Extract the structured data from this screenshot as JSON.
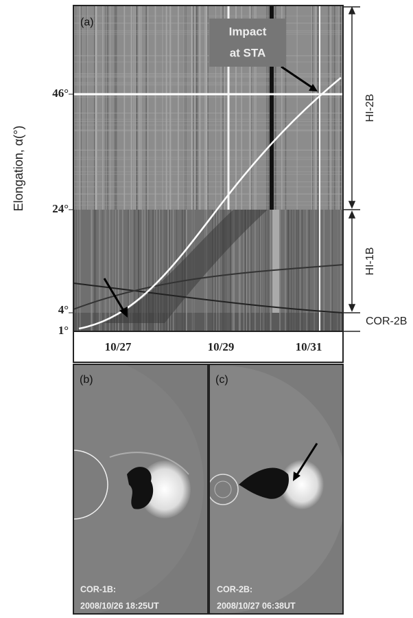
{
  "figure": {
    "panel_a": {
      "label": "(a)",
      "y_axis_label": "Elongation, α(°)",
      "y_ticks": [
        "46°",
        "24°",
        "4°",
        "1°"
      ],
      "x_ticks": [
        "10/27",
        "10/29",
        "10/31"
      ],
      "annotation": [
        "Impact",
        "at STA"
      ],
      "ranges": [
        "HI-2B",
        "HI-1B",
        "COR-2B"
      ]
    },
    "panel_b": {
      "label": "(b)",
      "caption": [
        "COR-1B:",
        "2008/10/26 18:25UT"
      ]
    },
    "panel_c": {
      "label": "(c)",
      "caption": [
        "COR-2B:",
        "2008/10/27 06:38UT"
      ]
    }
  }
}
